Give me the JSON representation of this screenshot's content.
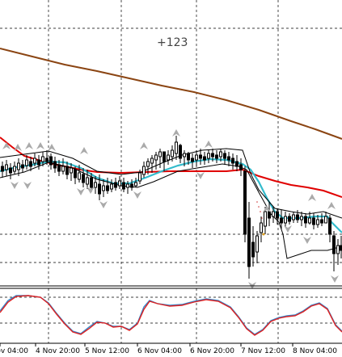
{
  "chart": {
    "annotation_text": "+123",
    "time_labels": [
      "4 Nov 04:00",
      "4 Nov 20:00",
      "5 Nov 12:00",
      "6 Nov 04:00",
      "6 Nov 20:00",
      "7 Nov 12:00",
      "8 Nov 04:00"
    ]
  },
  "colors": {
    "background": "#ffffff",
    "grid": "#000000",
    "long_ma": "#8B4513",
    "medium_ma": "#e00000",
    "short_ma": "#33bbcc",
    "envelope": "#000000",
    "oscillator_red": "#e02020",
    "oscillator_blue": "#3388cc",
    "fractal": "#aaaaaa",
    "candle": "#000000"
  }
}
